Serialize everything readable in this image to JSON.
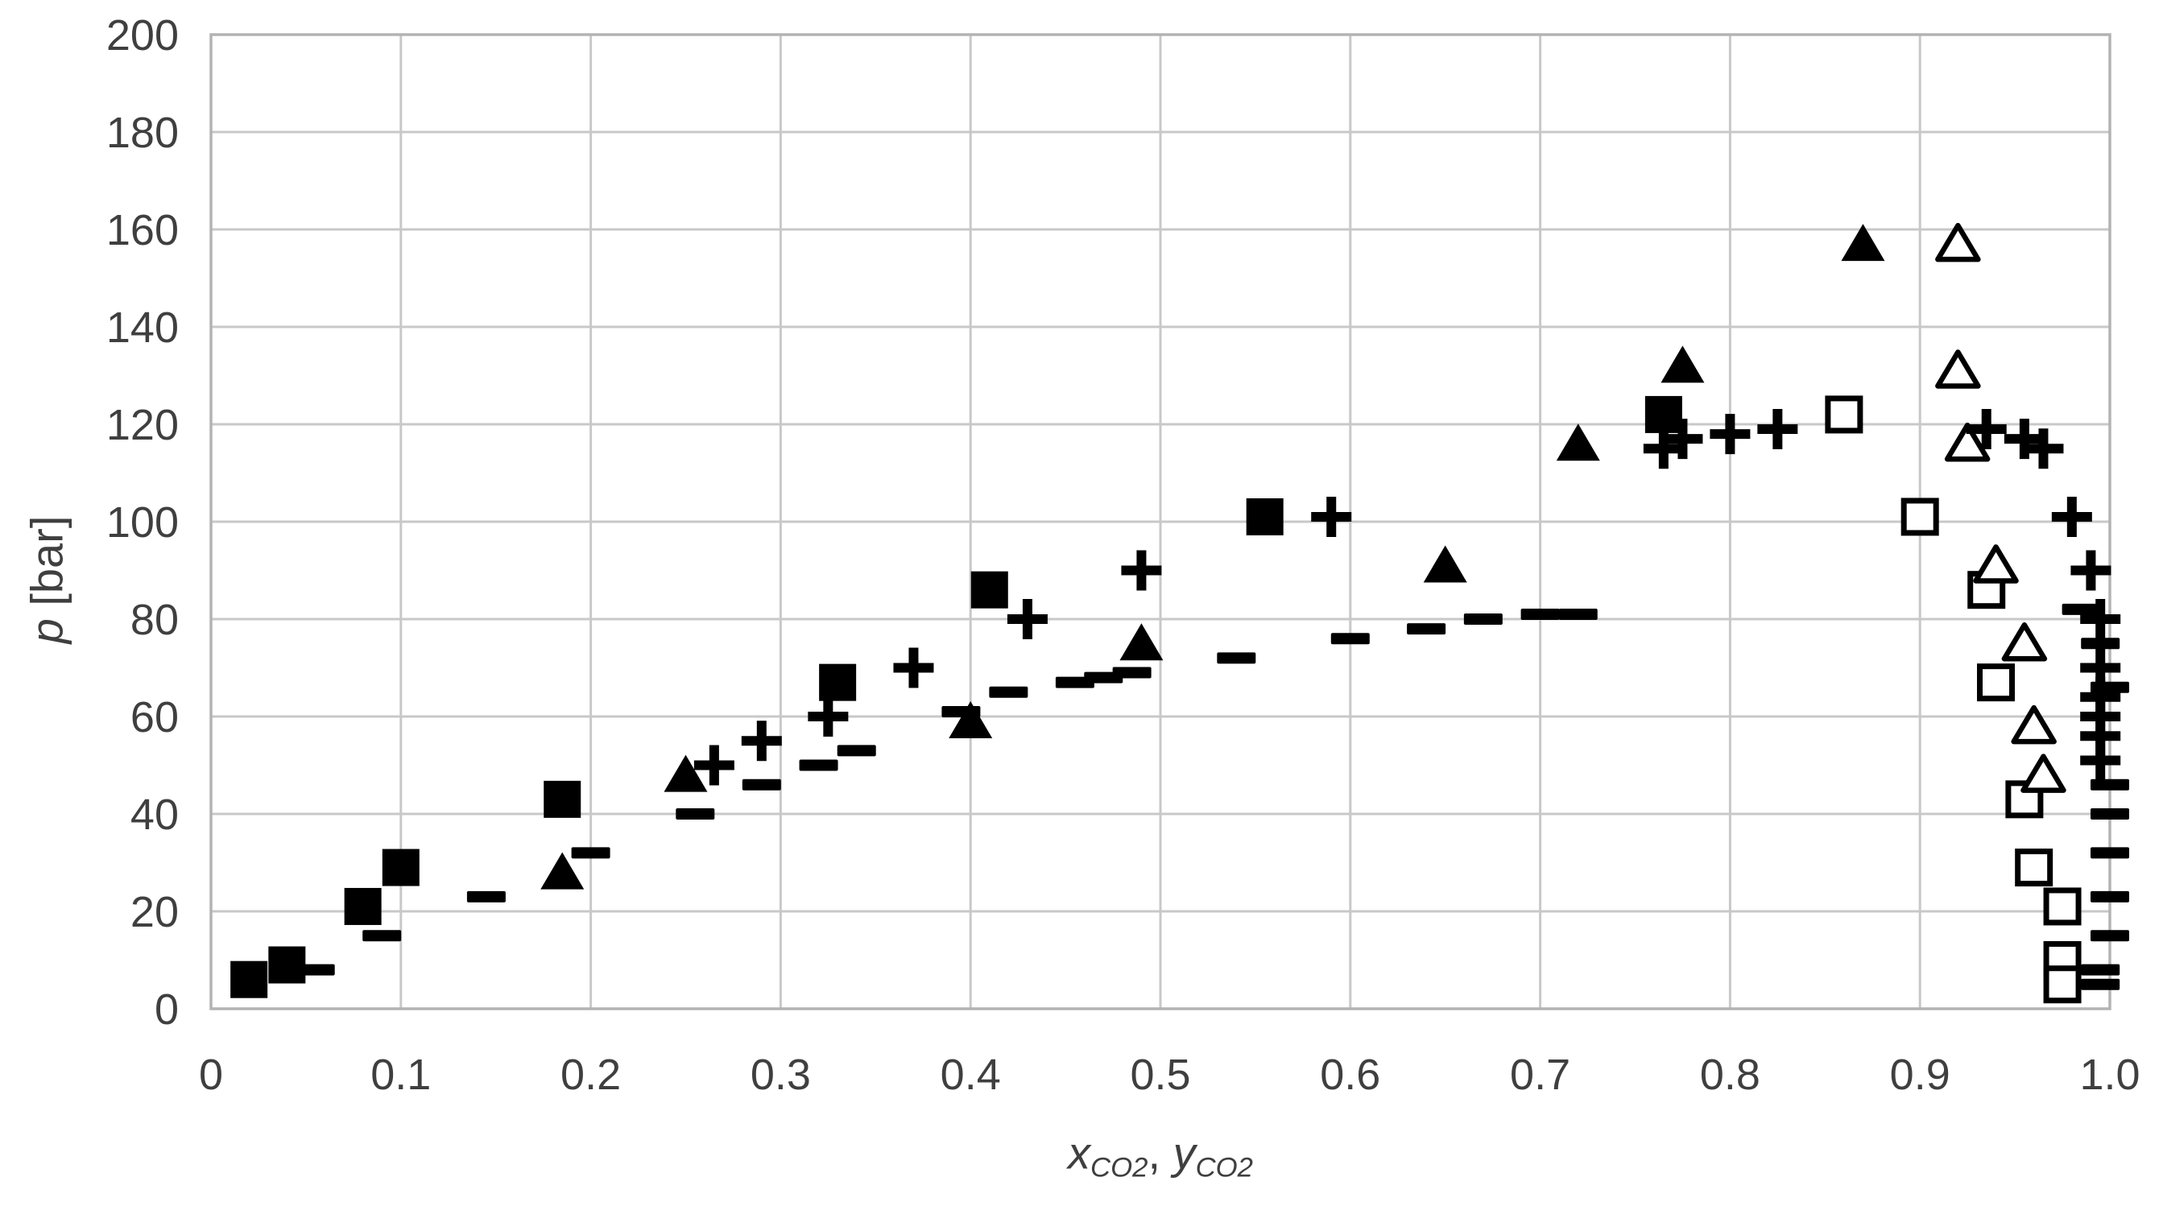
{
  "page": {
    "background": "#ffffff"
  },
  "chart_data": {
    "type": "scatter",
    "title": "",
    "legend": "none",
    "grid": true,
    "colors": {
      "marker": "#000000",
      "grid": "#c8c8c8",
      "border": "#b3b3b3",
      "axis_text": "#3f3f3f"
    },
    "x_axis": {
      "title_var1": "x",
      "title_sub1": "CO2",
      "title_sep": ", ",
      "title_var2": "y",
      "title_sub2": "CO2",
      "ticks": [
        "0",
        "0.1",
        "0.2",
        "0.3",
        "0.4",
        "0.5",
        "0.6",
        "0.7",
        "0.8",
        "0.9",
        "1.0"
      ],
      "range": [
        0,
        1
      ]
    },
    "y_axis": {
      "title_var": "p",
      "title_unit": "[bar]",
      "ticks": [
        "0",
        "20",
        "40",
        "60",
        "80",
        "100",
        "120",
        "140",
        "160",
        "180",
        "200"
      ],
      "range": [
        0,
        200
      ]
    },
    "series": [
      {
        "name": "filled-square",
        "marker": "square-filled",
        "points": [
          [
            0.02,
            6
          ],
          [
            0.04,
            9
          ],
          [
            0.08,
            21
          ],
          [
            0.1,
            29
          ],
          [
            0.185,
            43
          ],
          [
            0.33,
            67
          ],
          [
            0.41,
            86
          ],
          [
            0.555,
            101
          ],
          [
            0.765,
            122
          ]
        ]
      },
      {
        "name": "open-square",
        "marker": "square-open",
        "points": [
          [
            0.86,
            122
          ],
          [
            0.9,
            101
          ],
          [
            0.935,
            86
          ],
          [
            0.94,
            67
          ],
          [
            0.955,
            43
          ],
          [
            0.96,
            29
          ],
          [
            0.975,
            21
          ],
          [
            0.975,
            10
          ],
          [
            0.975,
            5
          ]
        ]
      },
      {
        "name": "filled-triangle",
        "marker": "triangle-filled",
        "points": [
          [
            0.185,
            28
          ],
          [
            0.25,
            48
          ],
          [
            0.4,
            59
          ],
          [
            0.49,
            75
          ],
          [
            0.65,
            91
          ],
          [
            0.72,
            116
          ],
          [
            0.775,
            132
          ],
          [
            0.87,
            157
          ]
        ]
      },
      {
        "name": "open-triangle",
        "marker": "triangle-open",
        "points": [
          [
            0.92,
            157
          ],
          [
            0.92,
            131
          ],
          [
            0.925,
            116
          ],
          [
            0.94,
            91
          ],
          [
            0.955,
            75
          ],
          [
            0.96,
            58
          ],
          [
            0.965,
            48
          ]
        ]
      },
      {
        "name": "plus",
        "marker": "plus",
        "points": [
          [
            0.265,
            50
          ],
          [
            0.29,
            55
          ],
          [
            0.325,
            60
          ],
          [
            0.37,
            70
          ],
          [
            0.43,
            80
          ],
          [
            0.49,
            90
          ],
          [
            0.59,
            101
          ],
          [
            0.765,
            115
          ],
          [
            0.775,
            117
          ],
          [
            0.8,
            118
          ],
          [
            0.825,
            119
          ],
          [
            0.935,
            119
          ],
          [
            0.955,
            117
          ],
          [
            0.965,
            115
          ],
          [
            0.98,
            101
          ],
          [
            0.99,
            90
          ],
          [
            0.995,
            80
          ],
          [
            0.995,
            70
          ],
          [
            0.995,
            64
          ],
          [
            0.995,
            60
          ],
          [
            0.995,
            56
          ],
          [
            0.995,
            51
          ]
        ]
      },
      {
        "name": "dash",
        "marker": "dash",
        "points": [
          [
            0.055,
            8
          ],
          [
            0.09,
            15
          ],
          [
            0.145,
            23
          ],
          [
            0.2,
            32
          ],
          [
            0.255,
            40
          ],
          [
            0.29,
            46
          ],
          [
            0.32,
            50
          ],
          [
            0.34,
            53
          ],
          [
            0.395,
            61
          ],
          [
            0.42,
            65
          ],
          [
            0.455,
            67
          ],
          [
            0.47,
            68
          ],
          [
            0.485,
            69
          ],
          [
            0.54,
            72
          ],
          [
            0.6,
            76
          ],
          [
            0.64,
            78
          ],
          [
            0.67,
            80
          ],
          [
            0.7,
            81
          ],
          [
            0.72,
            81
          ],
          [
            0.985,
            82
          ],
          [
            0.995,
            75
          ],
          [
            1.0,
            66
          ],
          [
            1.0,
            46
          ],
          [
            1.0,
            40
          ],
          [
            1.0,
            32
          ],
          [
            1.0,
            23
          ],
          [
            1.0,
            15
          ],
          [
            0.995,
            8
          ],
          [
            0.995,
            5
          ]
        ]
      }
    ]
  }
}
